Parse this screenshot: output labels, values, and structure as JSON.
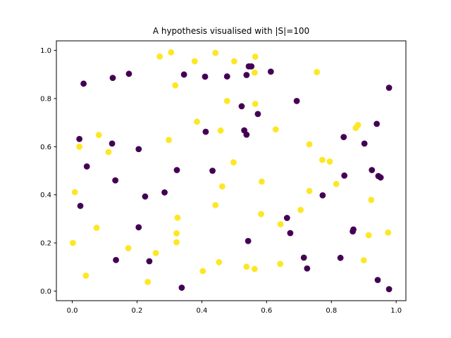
{
  "chart_data": {
    "type": "scatter",
    "title": "A hypothesis visualised with |S|=100",
    "xlabel": "",
    "ylabel": "",
    "xlim": [
      -0.049,
      1.03
    ],
    "ylim": [
      -0.04,
      1.04
    ],
    "xticks": [
      "0.0",
      "0.2",
      "0.4",
      "0.6",
      "0.8",
      "1.0"
    ],
    "yticks": [
      "0.0",
      "0.2",
      "0.4",
      "0.6",
      "0.8",
      "1.0"
    ],
    "grid": false,
    "colors": {
      "class_0": "#440154",
      "class_1": "#fde725"
    },
    "series": [
      {
        "color": "#440154",
        "points": [
          [
            0.035,
            0.862
          ],
          [
            0.125,
            0.886
          ],
          [
            0.175,
            0.903
          ],
          [
            0.345,
            0.9
          ],
          [
            0.41,
            0.891
          ],
          [
            0.478,
            0.892
          ],
          [
            0.538,
            0.898
          ],
          [
            0.545,
            0.934
          ],
          [
            0.553,
            0.934
          ],
          [
            0.613,
            0.912
          ],
          [
            0.978,
            0.845
          ],
          [
            0.693,
            0.79
          ],
          [
            0.523,
            0.768
          ],
          [
            0.573,
            0.736
          ],
          [
            0.531,
            0.668
          ],
          [
            0.538,
            0.65
          ],
          [
            0.412,
            0.662
          ],
          [
            0.022,
            0.632
          ],
          [
            0.123,
            0.613
          ],
          [
            0.205,
            0.59
          ],
          [
            0.838,
            0.64
          ],
          [
            0.902,
            0.613
          ],
          [
            0.94,
            0.695
          ],
          [
            0.045,
            0.518
          ],
          [
            0.323,
            0.503
          ],
          [
            0.433,
            0.5
          ],
          [
            0.925,
            0.503
          ],
          [
            0.945,
            0.478
          ],
          [
            0.952,
            0.472
          ],
          [
            0.84,
            0.48
          ],
          [
            0.133,
            0.46
          ],
          [
            0.225,
            0.393
          ],
          [
            0.285,
            0.41
          ],
          [
            0.773,
            0.398
          ],
          [
            0.025,
            0.354
          ],
          [
            0.663,
            0.304
          ],
          [
            0.673,
            0.241
          ],
          [
            0.868,
            0.256
          ],
          [
            0.866,
            0.248
          ],
          [
            0.205,
            0.265
          ],
          [
            0.543,
            0.208
          ],
          [
            0.135,
            0.129
          ],
          [
            0.238,
            0.124
          ],
          [
            0.715,
            0.139
          ],
          [
            0.725,
            0.094
          ],
          [
            0.828,
            0.138
          ],
          [
            0.943,
            0.046
          ],
          [
            0.978,
            0.008
          ],
          [
            0.338,
            0.014
          ]
        ]
      },
      {
        "color": "#fde725",
        "points": [
          [
            0.27,
            0.975
          ],
          [
            0.305,
            0.992
          ],
          [
            0.378,
            0.955
          ],
          [
            0.442,
            0.99
          ],
          [
            0.5,
            0.955
          ],
          [
            0.565,
            0.974
          ],
          [
            0.563,
            0.908
          ],
          [
            0.755,
            0.91
          ],
          [
            0.318,
            0.855
          ],
          [
            0.478,
            0.79
          ],
          [
            0.565,
            0.778
          ],
          [
            0.385,
            0.704
          ],
          [
            0.458,
            0.667
          ],
          [
            0.628,
            0.672
          ],
          [
            0.875,
            0.678
          ],
          [
            0.882,
            0.69
          ],
          [
            0.082,
            0.649
          ],
          [
            0.298,
            0.628
          ],
          [
            0.022,
            0.6
          ],
          [
            0.112,
            0.578
          ],
          [
            0.732,
            0.61
          ],
          [
            0.772,
            0.545
          ],
          [
            0.795,
            0.538
          ],
          [
            0.498,
            0.535
          ],
          [
            0.585,
            0.455
          ],
          [
            0.463,
            0.435
          ],
          [
            0.815,
            0.445
          ],
          [
            0.008,
            0.411
          ],
          [
            0.732,
            0.416
          ],
          [
            0.442,
            0.357
          ],
          [
            0.923,
            0.379
          ],
          [
            0.583,
            0.32
          ],
          [
            0.325,
            0.305
          ],
          [
            0.705,
            0.337
          ],
          [
            0.075,
            0.263
          ],
          [
            0.643,
            0.278
          ],
          [
            0.322,
            0.24
          ],
          [
            0.915,
            0.232
          ],
          [
            0.975,
            0.243
          ],
          [
            0.002,
            0.2
          ],
          [
            0.322,
            0.203
          ],
          [
            0.173,
            0.178
          ],
          [
            0.258,
            0.158
          ],
          [
            0.453,
            0.12
          ],
          [
            0.538,
            0.101
          ],
          [
            0.563,
            0.092
          ],
          [
            0.642,
            0.113
          ],
          [
            0.9,
            0.128
          ],
          [
            0.403,
            0.083
          ],
          [
            0.042,
            0.064
          ],
          [
            0.233,
            0.038
          ]
        ]
      }
    ]
  }
}
